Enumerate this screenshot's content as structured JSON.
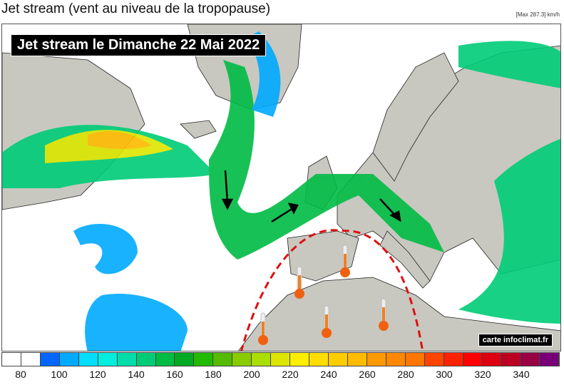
{
  "title": "Jet stream (vent au niveau de la tropopause)",
  "max_info": "[Max 287.3] km/h",
  "banner": "Jet stream le Dimanche 22 Mai 2022",
  "credit": "carte infoclimat.fr",
  "legend": {
    "unit": "km/h",
    "colors": [
      "#ffffff",
      "#ffffff",
      "#0066ff",
      "#00aaff",
      "#00ddff",
      "#00eedd",
      "#00ddaa",
      "#00cc77",
      "#00bb44",
      "#00aa22",
      "#22bb00",
      "#55bb00",
      "#88cc00",
      "#aadd00",
      "#dde600",
      "#ffee00",
      "#ffdd00",
      "#ffcc00",
      "#ffbb00",
      "#ff9900",
      "#ff8800",
      "#ff7700",
      "#ff4400",
      "#ff2200",
      "#ff0000",
      "#dd0011",
      "#bb0022",
      "#990044",
      "#770077"
    ],
    "labels": [
      "80",
      "100",
      "120",
      "140",
      "160",
      "180",
      "200",
      "220",
      "240",
      "260",
      "280",
      "300",
      "320",
      "340"
    ]
  },
  "colors": {
    "land": "#c8c8c0",
    "sea": "#ffffff",
    "heat_dome": "#dd1111"
  },
  "icons": [
    "thermometer-icon",
    "wind-arrow-icon"
  ]
}
